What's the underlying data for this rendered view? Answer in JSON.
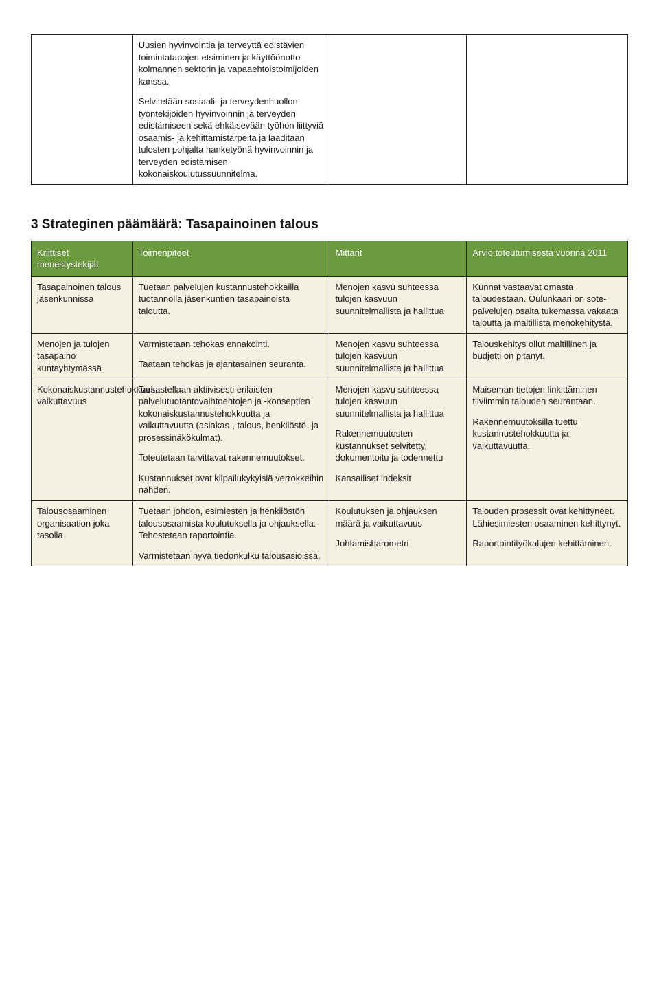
{
  "top_table": {
    "row": {
      "col1": "",
      "col2_p1": "Uusien hyvinvointia ja terveyttä edistävien toimintatapojen etsiminen ja käyttöönotto kolmannen sektorin ja vapaaehtoistoimijoiden kanssa.",
      "col2_p2": "Selvitetään sosiaali- ja terveydenhuollon työntekijöiden hyvinvoinnin ja terveyden edistämiseen sekä ehkäisevään työhön liittyviä osaamis- ja kehittämistarpeita ja laaditaan tulosten pohjalta hanketyönä hyvinvoinnin ja terveyden edistämisen kokonaiskoulutussuunnitelma.",
      "col3": "",
      "col4": ""
    }
  },
  "section_title": "3 Strateginen päämäärä: Tasapainoinen talous",
  "headers": {
    "h1": "Kriittiset menestystekijät",
    "h2": "Toimenpiteet",
    "h3": "Mittarit",
    "h4": "Arvio toteutumisesta vuonna 2011"
  },
  "rows": [
    {
      "c1": "Tasapainoinen talous jäsenkunnissa",
      "c2": "Tuetaan palvelujen kustannustehokkailla tuotannolla jäsenkuntien tasapainoista taloutta.",
      "c3": "Menojen kasvu suhteessa tulojen kasvuun suunnitelmallista ja hallittua",
      "c4": "Kunnat vastaavat omasta taloudestaan. Oulunkaari on sote-palvelujen osalta tukemassa vakaata taloutta ja maltillista menokehitystä."
    },
    {
      "c1": "Menojen ja tulojen tasapaino kuntayhtymässä",
      "c2_p1": "Varmistetaan tehokas ennakointi.",
      "c2_p2": "Taataan tehokas ja ajantasainen seuranta.",
      "c3": "Menojen kasvu suhteessa tulojen kasvuun suunnitelmallista ja hallittua",
      "c4": "Talouskehitys ollut maltillinen ja budjetti on pitänyt."
    },
    {
      "c1": "Kokonaiskustannustehokkuus, vaikuttavuus",
      "c2_p1": "Tarkastellaan aktiivisesti erilaisten palvelutuotantovaihtoehtojen ja -konseptien kokonaiskustannustehokkuutta ja vaikuttavuutta (asiakas-, talous, henkilöstö- ja prosessinäkökulmat).",
      "c2_p2": "Toteutetaan tarvittavat rakennemuutokset.",
      "c2_p3": "Kustannukset ovat kilpailukykyisiä verrokkeihin nähden.",
      "c3_p1": "Menojen kasvu suhteessa tulojen kasvuun suunnitelmallista ja hallittua",
      "c3_p2": "Rakennemuutosten kustannukset selvitetty, dokumentoitu ja todennettu",
      "c3_p3": "Kansalliset indeksit",
      "c4_p1": "Maiseman tietojen linkittäminen tiiviimmin talouden seurantaan.",
      "c4_p2": "Rakennemuutoksilla tuettu kustannustehokkuutta ja vaikuttavuutta."
    },
    {
      "c1": "Talousosaaminen organisaation joka tasolla",
      "c2_p1": "Tuetaan johdon, esimiesten ja henkilöstön talousosaamista koulutuksella ja ohjauksella. Tehostetaan raportointia.",
      "c2_p2": "Varmistetaan hyvä tiedonkulku talousasioissa.",
      "c3_p1": "Koulutuksen ja ohjauksen määrä ja vaikuttavuus",
      "c3_p2": "Johtamisbarometri",
      "c4_p1": "Talouden prosessit ovat kehittyneet. Lähiesimiesten osaaminen kehittynyt.",
      "c4_p2": "Raportointityökalujen kehittäminen."
    }
  ]
}
